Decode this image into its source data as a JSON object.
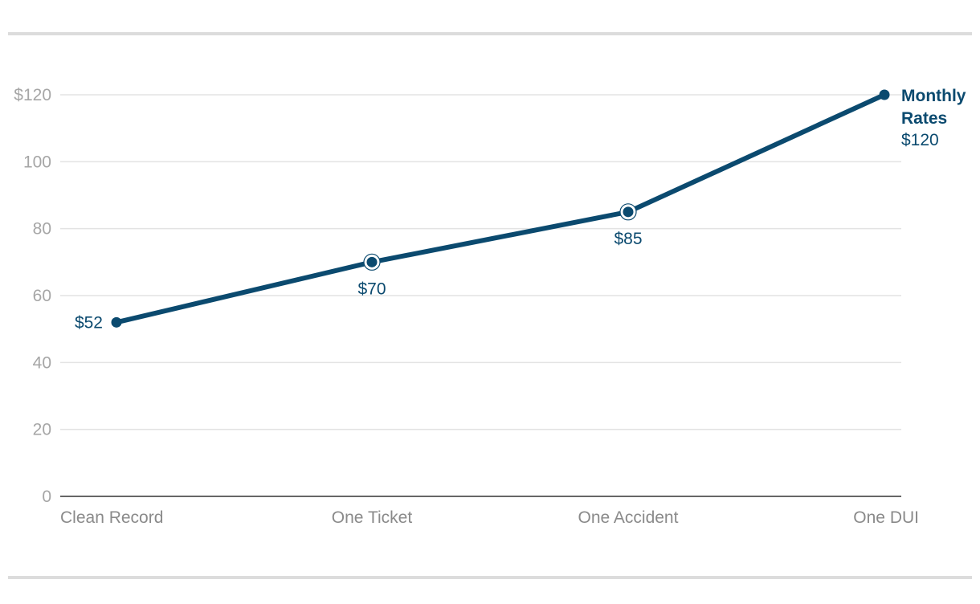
{
  "chart_data": {
    "type": "line",
    "categories": [
      "Clean Record",
      "One Ticket",
      "One Accident",
      "One DUI"
    ],
    "series": [
      {
        "name": "Monthly Rates",
        "values": [
          52,
          70,
          85,
          120
        ]
      }
    ],
    "data_labels": [
      "$52",
      "$70",
      "$85",
      "$120"
    ],
    "y_ticks": [
      0,
      20,
      40,
      60,
      80,
      100,
      120
    ],
    "y_tick_labels": [
      "0",
      "20",
      "40",
      "60",
      "80",
      "100",
      "$120"
    ],
    "ylim": [
      0,
      120
    ],
    "grid": true,
    "series_label_lines": [
      "Monthly",
      "Rates"
    ],
    "colors": {
      "line": "#0b4a6f",
      "grid": "#e3e3e3",
      "axis": "#333333",
      "tick_text": "#a6a6a6",
      "rule": "#dcdcdc"
    }
  }
}
